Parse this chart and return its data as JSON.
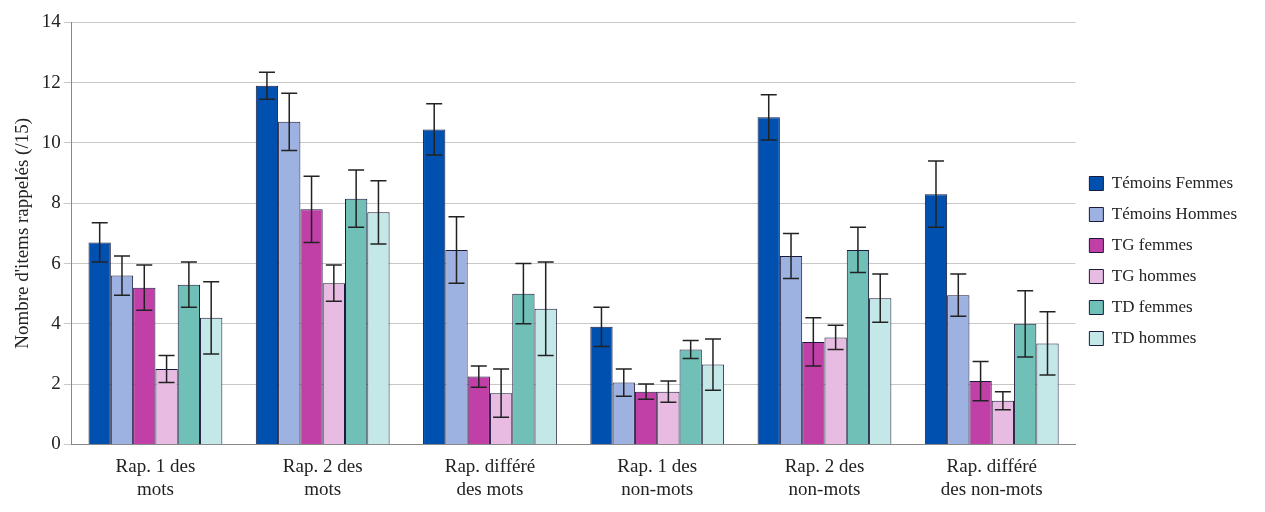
{
  "chart_data": {
    "type": "bar",
    "ylabel": "Nombre d'items rappelés (/15)",
    "categories": [
      "Rap. 1 des mots",
      "Rap. 2 des mots",
      "Rap. différé des mots",
      "Rap. 1 des non-mots",
      "Rap. 2 des non-mots",
      "Rap. différé des non-mots"
    ],
    "series": [
      {
        "name": "Témoins Femmes",
        "color": "#0050b0",
        "values": [
          6.7,
          11.9,
          10.45,
          3.9,
          10.85,
          8.3
        ],
        "errors": [
          0.65,
          0.45,
          0.85,
          0.65,
          0.75,
          1.1
        ]
      },
      {
        "name": "Témoins Hommes",
        "color": "#9db2e0",
        "values": [
          5.6,
          10.7,
          6.45,
          2.05,
          6.25,
          4.95
        ],
        "errors": [
          0.65,
          0.95,
          1.1,
          0.45,
          0.75,
          0.7
        ]
      },
      {
        "name": "TG femmes",
        "color": "#c040a8",
        "values": [
          5.2,
          7.8,
          2.25,
          1.75,
          3.4,
          2.1
        ],
        "errors": [
          0.75,
          1.1,
          0.35,
          0.25,
          0.8,
          0.65
        ]
      },
      {
        "name": "TG hommes",
        "color": "#e8bce2",
        "values": [
          2.5,
          5.35,
          1.7,
          1.75,
          3.55,
          1.45
        ],
        "errors": [
          0.45,
          0.6,
          0.8,
          0.35,
          0.4,
          0.3
        ]
      },
      {
        "name": "TD femmes",
        "color": "#70c0b8",
        "values": [
          5.3,
          8.15,
          5.0,
          3.15,
          6.45,
          4.0
        ],
        "errors": [
          0.75,
          0.95,
          1.0,
          0.3,
          0.75,
          1.1
        ]
      },
      {
        "name": "TD hommes",
        "color": "#c4e8e8",
        "values": [
          4.2,
          7.7,
          4.5,
          2.65,
          4.85,
          3.35
        ],
        "errors": [
          1.2,
          1.05,
          1.55,
          0.85,
          0.8,
          1.05
        ]
      }
    ],
    "ylim": [
      0,
      14
    ],
    "yticks": [
      0,
      2,
      4,
      6,
      8,
      10,
      12,
      14
    ],
    "grid": "y",
    "legend": "right"
  }
}
